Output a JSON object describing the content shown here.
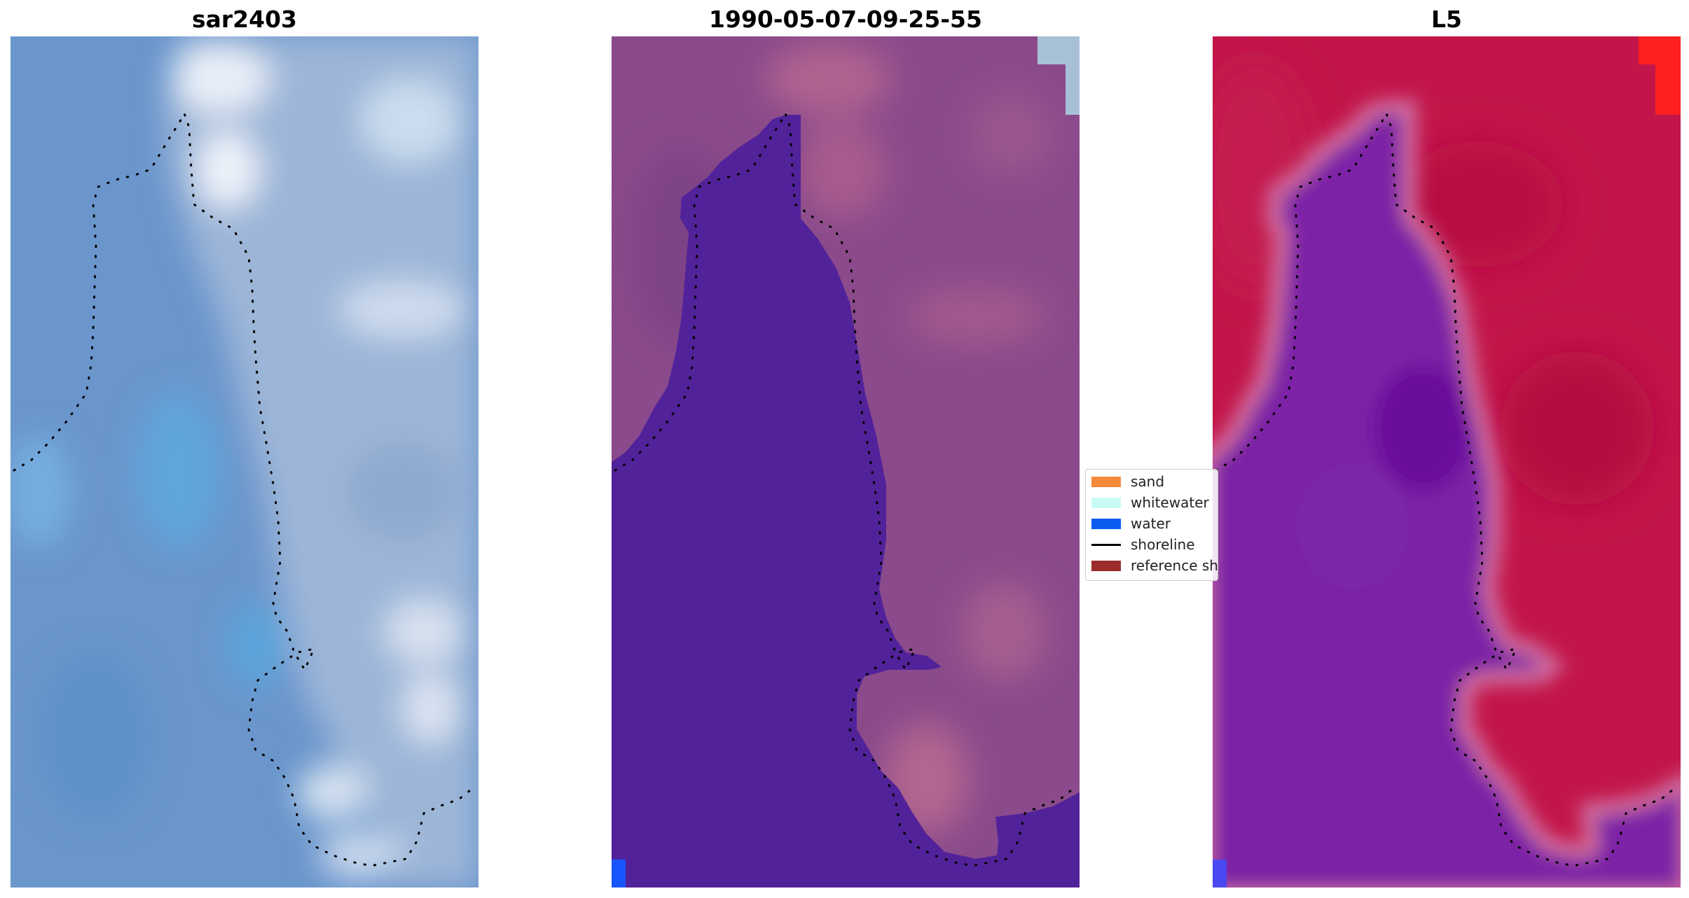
{
  "panels": [
    {
      "title": "sar2403"
    },
    {
      "title": "1990-05-07-09-25-55"
    },
    {
      "title": "L5"
    }
  ],
  "legend": {
    "items": [
      {
        "label": "sand",
        "kind": "patch",
        "color": "#f58a3a"
      },
      {
        "label": "whitewater",
        "kind": "patch",
        "color": "#c9fbf6"
      },
      {
        "label": "water",
        "kind": "patch",
        "color": "#0a5cf0"
      },
      {
        "label": "shoreline",
        "kind": "line",
        "color": "#000000"
      },
      {
        "label": "reference shoreline",
        "kind": "patch",
        "color": "#9c2b2b"
      }
    ]
  },
  "colors": {
    "panel1_water": "#6896cc",
    "panel1_land": "#9fb6d6",
    "panel1_bright": "#e9eef6",
    "panel2_water": "#52229a",
    "panel2_land": "#8c4a8a",
    "panel2_land_light": "#b0628e",
    "panel3_water": "#7b22a6",
    "panel3_land": "#c2164a",
    "panel3_edge": "#cf6a9c",
    "corner_bright_red": "#ff2020",
    "corner_light_blue": "#a8c0d6",
    "corner_blue": "#2150ff"
  }
}
